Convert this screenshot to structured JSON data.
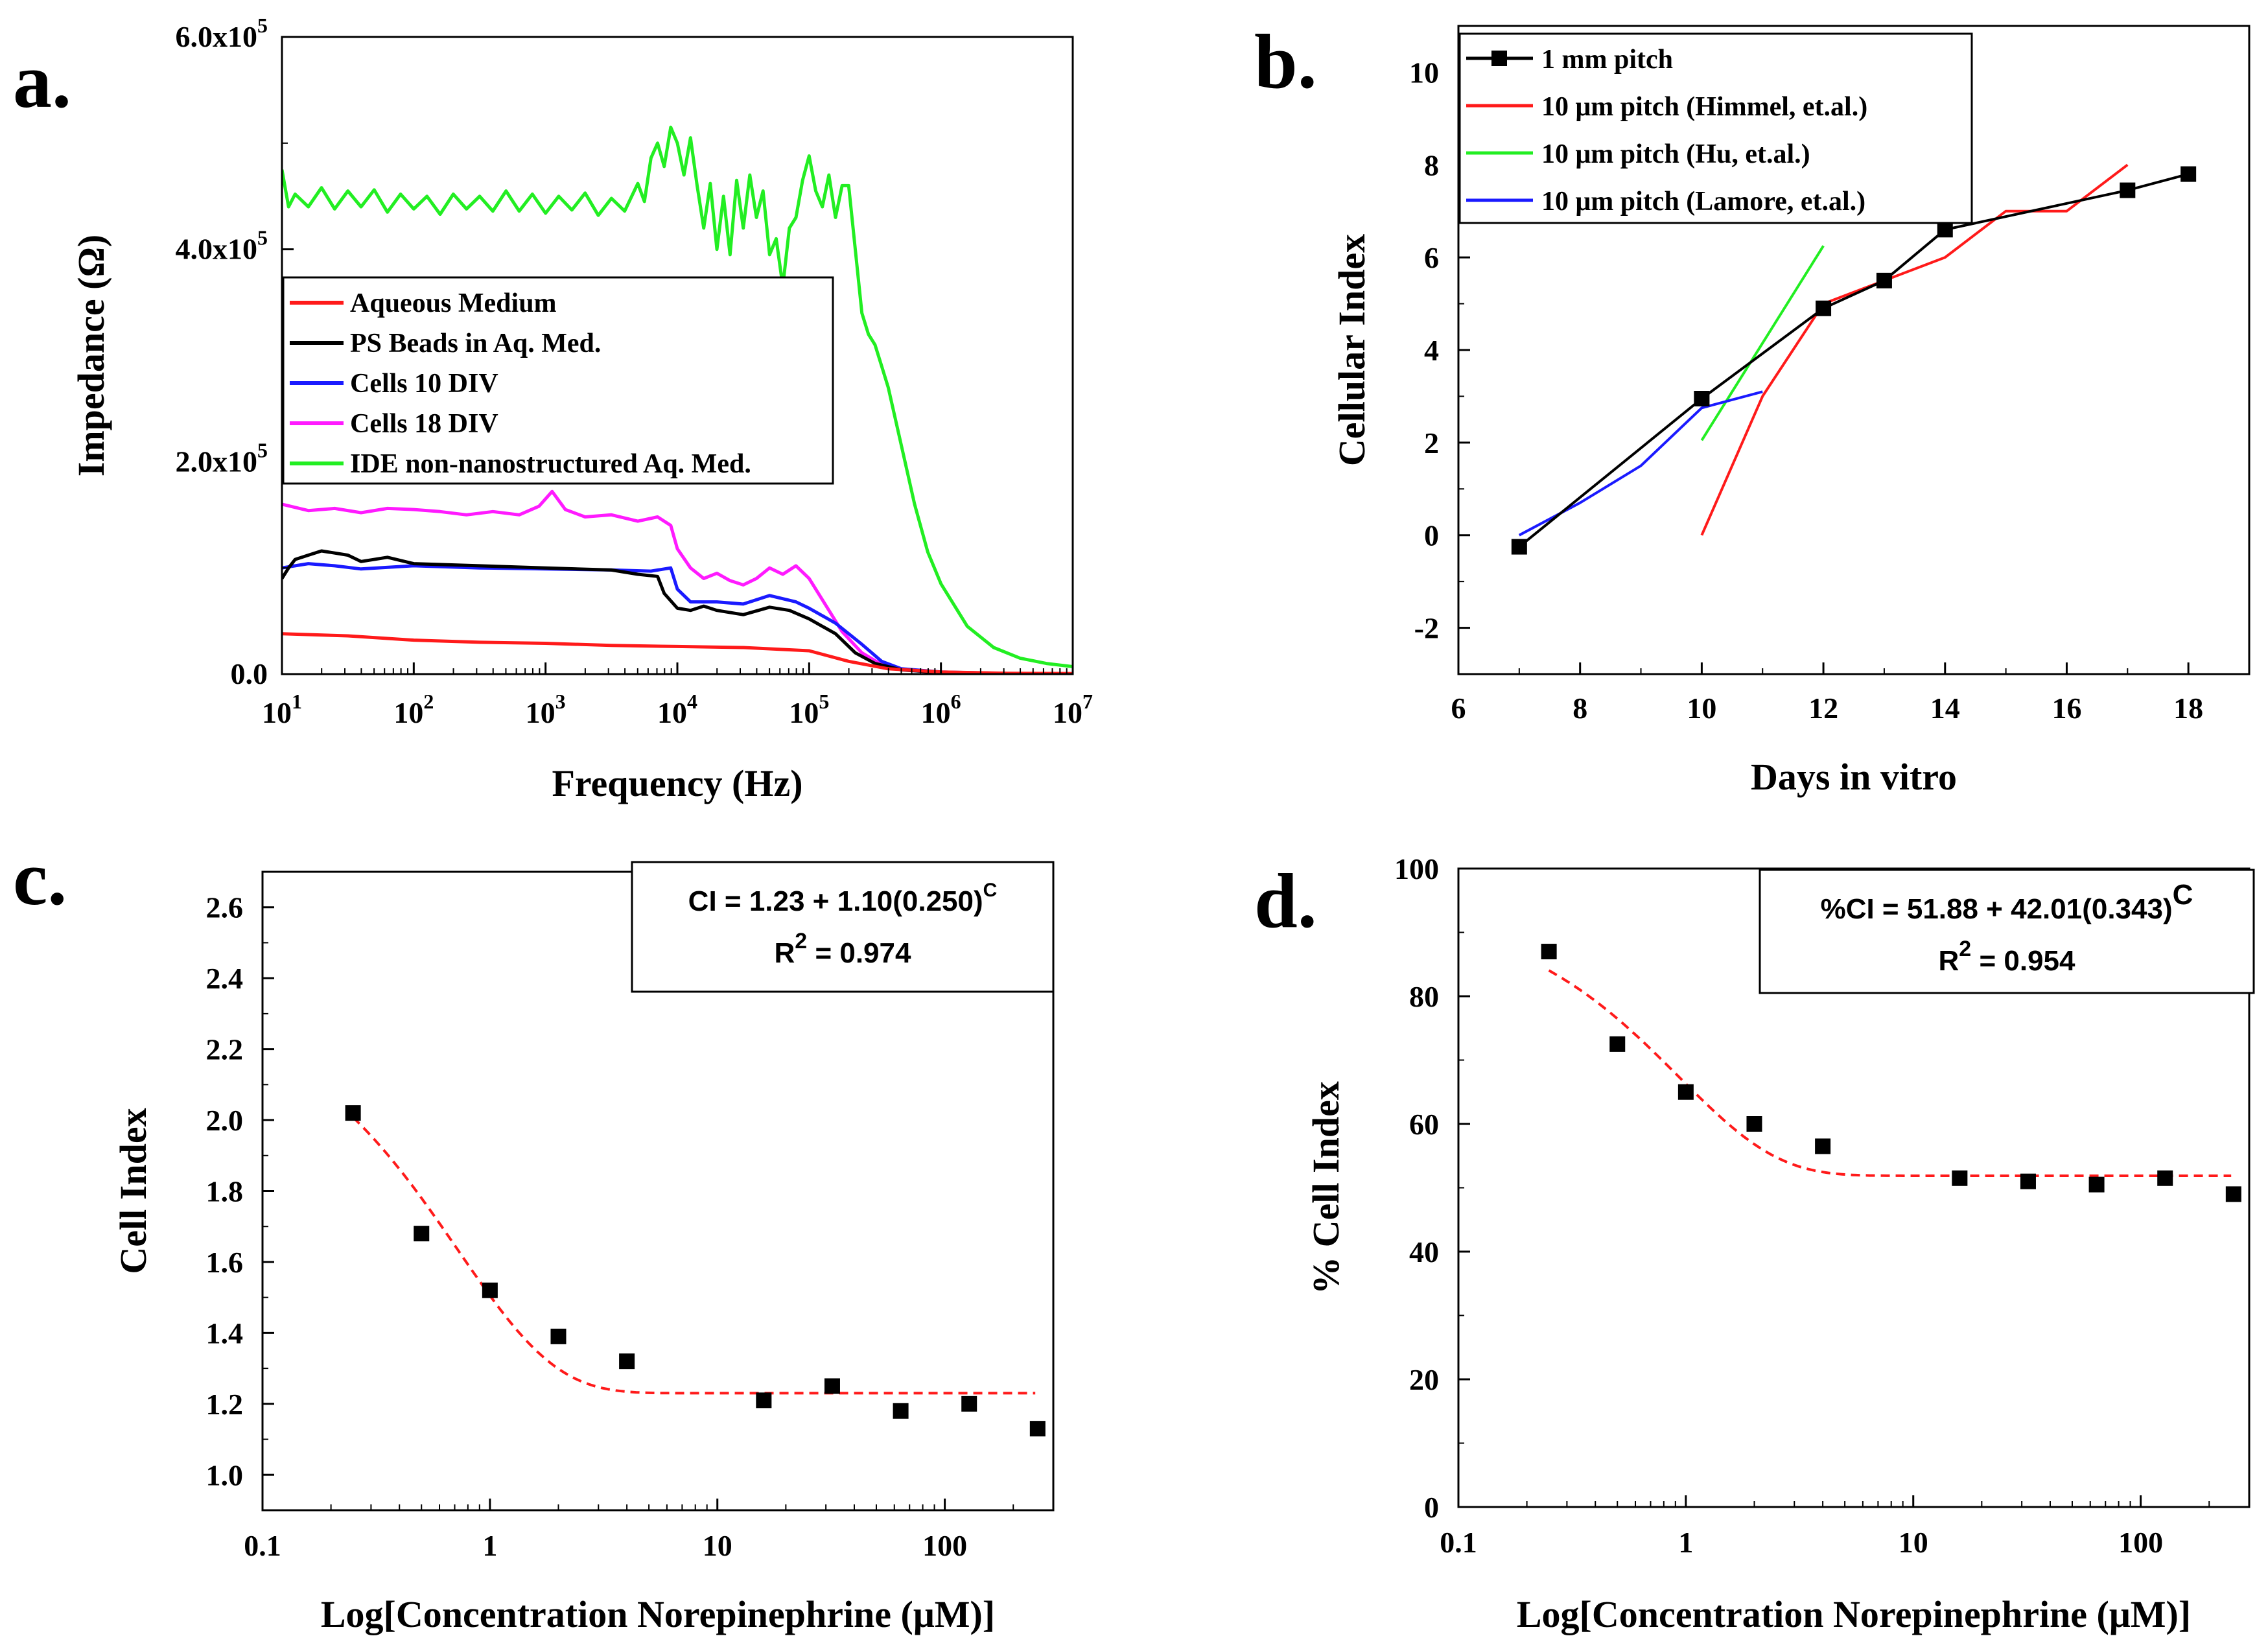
{
  "panels": {
    "a": {
      "label": "a."
    },
    "b": {
      "label": "b."
    },
    "c": {
      "label": "c."
    },
    "d": {
      "label": "d."
    }
  },
  "chart_data": [
    {
      "id": "a",
      "type": "line",
      "xscale": "log",
      "xlim_exp": [
        1,
        7
      ],
      "x_ticks": [
        {
          "base": "10",
          "exp": "1"
        },
        {
          "base": "10",
          "exp": "2"
        },
        {
          "base": "10",
          "exp": "3"
        },
        {
          "base": "10",
          "exp": "4"
        },
        {
          "base": "10",
          "exp": "5"
        },
        {
          "base": "10",
          "exp": "6"
        },
        {
          "base": "10",
          "exp": "7"
        }
      ],
      "ylim": [
        0,
        600000
      ],
      "y_ticks": [
        {
          "value": 0,
          "label": "0.0"
        },
        {
          "value": 200000,
          "mant": "2.0x10",
          "exp": "5"
        },
        {
          "value": 400000,
          "mant": "4.0x10",
          "exp": "5"
        },
        {
          "value": 600000,
          "mant": "6.0x10",
          "exp": "5"
        }
      ],
      "xlabel": "Frequency (Hz)",
      "ylabel": "Impedance (Ω)",
      "legend_position": "center-left",
      "series": [
        {
          "name": "Aqueous Medium",
          "color": "#ff1a1a",
          "points": [
            [
              1.0,
              38000
            ],
            [
              1.5,
              36000
            ],
            [
              2.0,
              32000
            ],
            [
              2.5,
              30000
            ],
            [
              3.0,
              29000
            ],
            [
              3.5,
              27000
            ],
            [
              4.0,
              26000
            ],
            [
              4.5,
              25000
            ],
            [
              5.0,
              22000
            ],
            [
              5.3,
              12000
            ],
            [
              5.6,
              5000
            ],
            [
              6.0,
              2000
            ],
            [
              6.5,
              800
            ],
            [
              7.0,
              500
            ]
          ]
        },
        {
          "name": "PS Beads in Aq. Med.",
          "color": "#000000",
          "points": [
            [
              1.0,
              90000
            ],
            [
              1.05,
              100000
            ],
            [
              1.1,
              108000
            ],
            [
              1.2,
              112000
            ],
            [
              1.3,
              116000
            ],
            [
              1.4,
              114000
            ],
            [
              1.5,
              112000
            ],
            [
              1.6,
              106000
            ],
            [
              1.8,
              110000
            ],
            [
              2.0,
              104000
            ],
            [
              2.5,
              102000
            ],
            [
              3.0,
              100000
            ],
            [
              3.5,
              98000
            ],
            [
              3.7,
              94000
            ],
            [
              3.85,
              92000
            ],
            [
              3.9,
              76000
            ],
            [
              4.0,
              62000
            ],
            [
              4.1,
              60000
            ],
            [
              4.2,
              64000
            ],
            [
              4.3,
              60000
            ],
            [
              4.5,
              56000
            ],
            [
              4.7,
              63000
            ],
            [
              4.85,
              60000
            ],
            [
              5.0,
              52000
            ],
            [
              5.2,
              38000
            ],
            [
              5.35,
              20000
            ],
            [
              5.5,
              10000
            ],
            [
              5.7,
              4000
            ],
            [
              6.0,
              1500
            ],
            [
              6.5,
              500
            ],
            [
              7.0,
              300
            ]
          ]
        },
        {
          "name": "Cells 10 DIV",
          "color": "#1a1aff",
          "points": [
            [
              1.0,
              100000
            ],
            [
              1.2,
              104000
            ],
            [
              1.4,
              102000
            ],
            [
              1.6,
              99000
            ],
            [
              2.0,
              102000
            ],
            [
              2.5,
              100000
            ],
            [
              3.0,
              99000
            ],
            [
              3.5,
              98000
            ],
            [
              3.8,
              97000
            ],
            [
              3.95,
              100000
            ],
            [
              4.0,
              80000
            ],
            [
              4.1,
              68000
            ],
            [
              4.3,
              68000
            ],
            [
              4.5,
              66000
            ],
            [
              4.7,
              74000
            ],
            [
              4.9,
              68000
            ],
            [
              5.0,
              62000
            ],
            [
              5.2,
              48000
            ],
            [
              5.4,
              28000
            ],
            [
              5.55,
              12000
            ],
            [
              5.7,
              5000
            ],
            [
              6.0,
              2000
            ],
            [
              6.5,
              600
            ],
            [
              7.0,
              300
            ]
          ]
        },
        {
          "name": "Cells 18 DIV",
          "color": "#ff1aff",
          "points": [
            [
              1.0,
              160000
            ],
            [
              1.2,
              154000
            ],
            [
              1.4,
              156000
            ],
            [
              1.6,
              152000
            ],
            [
              1.8,
              156000
            ],
            [
              2.0,
              155000
            ],
            [
              2.2,
              153000
            ],
            [
              2.4,
              150000
            ],
            [
              2.6,
              153000
            ],
            [
              2.8,
              150000
            ],
            [
              2.95,
              158000
            ],
            [
              3.05,
              172000
            ],
            [
              3.15,
              155000
            ],
            [
              3.3,
              148000
            ],
            [
              3.5,
              150000
            ],
            [
              3.7,
              144000
            ],
            [
              3.85,
              148000
            ],
            [
              3.95,
              140000
            ],
            [
              4.0,
              118000
            ],
            [
              4.1,
              100000
            ],
            [
              4.2,
              90000
            ],
            [
              4.3,
              95000
            ],
            [
              4.4,
              88000
            ],
            [
              4.5,
              84000
            ],
            [
              4.6,
              90000
            ],
            [
              4.7,
              100000
            ],
            [
              4.8,
              94000
            ],
            [
              4.9,
              102000
            ],
            [
              5.0,
              90000
            ],
            [
              5.1,
              70000
            ],
            [
              5.25,
              40000
            ],
            [
              5.4,
              20000
            ],
            [
              5.55,
              9000
            ],
            [
              5.7,
              4000
            ],
            [
              6.0,
              1500
            ],
            [
              6.5,
              500
            ],
            [
              7.0,
              300
            ]
          ]
        },
        {
          "name": "IDE non-nanostructured Aq. Med.",
          "color": "#22ee22",
          "points": [
            [
              1.0,
              475000
            ],
            [
              1.05,
              440000
            ],
            [
              1.1,
              452000
            ],
            [
              1.2,
              440000
            ],
            [
              1.3,
              458000
            ],
            [
              1.4,
              438000
            ],
            [
              1.5,
              455000
            ],
            [
              1.6,
              440000
            ],
            [
              1.7,
              456000
            ],
            [
              1.8,
              435000
            ],
            [
              1.9,
              452000
            ],
            [
              2.0,
              438000
            ],
            [
              2.1,
              450000
            ],
            [
              2.2,
              433000
            ],
            [
              2.3,
              452000
            ],
            [
              2.4,
              438000
            ],
            [
              2.5,
              450000
            ],
            [
              2.6,
              436000
            ],
            [
              2.7,
              455000
            ],
            [
              2.8,
              436000
            ],
            [
              2.9,
              452000
            ],
            [
              3.0,
              434000
            ],
            [
              3.1,
              450000
            ],
            [
              3.2,
              437000
            ],
            [
              3.3,
              453000
            ],
            [
              3.4,
              432000
            ],
            [
              3.5,
              448000
            ],
            [
              3.6,
              436000
            ],
            [
              3.7,
              462000
            ],
            [
              3.75,
              445000
            ],
            [
              3.8,
              486000
            ],
            [
              3.85,
              500000
            ],
            [
              3.9,
              478000
            ],
            [
              3.95,
              515000
            ],
            [
              4.0,
              500000
            ],
            [
              4.05,
              470000
            ],
            [
              4.1,
              505000
            ],
            [
              4.15,
              460000
            ],
            [
              4.2,
              420000
            ],
            [
              4.25,
              462000
            ],
            [
              4.3,
              400000
            ],
            [
              4.35,
              450000
            ],
            [
              4.4,
              395000
            ],
            [
              4.45,
              465000
            ],
            [
              4.5,
              420000
            ],
            [
              4.55,
              470000
            ],
            [
              4.6,
              430000
            ],
            [
              4.65,
              455000
            ],
            [
              4.7,
              395000
            ],
            [
              4.75,
              410000
            ],
            [
              4.8,
              365000
            ],
            [
              4.85,
              420000
            ],
            [
              4.9,
              430000
            ],
            [
              4.95,
              465000
            ],
            [
              5.0,
              488000
            ],
            [
              5.05,
              455000
            ],
            [
              5.1,
              440000
            ],
            [
              5.15,
              470000
            ],
            [
              5.2,
              430000
            ],
            [
              5.25,
              460000
            ],
            [
              5.3,
              460000
            ],
            [
              5.35,
              400000
            ],
            [
              5.4,
              340000
            ],
            [
              5.45,
              320000
            ],
            [
              5.5,
              310000
            ],
            [
              5.55,
              290000
            ],
            [
              5.6,
              270000
            ],
            [
              5.7,
              215000
            ],
            [
              5.8,
              160000
            ],
            [
              5.9,
              115000
            ],
            [
              6.0,
              85000
            ],
            [
              6.2,
              45000
            ],
            [
              6.4,
              25000
            ],
            [
              6.6,
              15000
            ],
            [
              6.8,
              10000
            ],
            [
              7.0,
              7000
            ]
          ]
        }
      ]
    },
    {
      "id": "b",
      "type": "line",
      "xlim": [
        6,
        19
      ],
      "x_ticks": [
        6,
        8,
        10,
        12,
        14,
        16,
        18
      ],
      "ylim": [
        -3,
        11
      ],
      "y_ticks": [
        -2,
        0,
        2,
        4,
        6,
        8,
        10
      ],
      "xlabel": "Days in vitro",
      "ylabel": "Cellular Index",
      "legend_position": "top-left",
      "series": [
        {
          "name": "1 mm pitch",
          "color": "#000000",
          "marker": "square",
          "x": [
            7,
            10,
            12,
            13,
            14,
            17,
            18
          ],
          "y": [
            -0.25,
            2.95,
            4.9,
            5.5,
            6.6,
            7.45,
            7.8
          ]
        },
        {
          "name": "10 μm pitch (Himmel, et.al.)",
          "color": "#ff1a1a",
          "x": [
            10,
            11,
            12,
            13,
            14,
            15,
            16,
            17
          ],
          "y": [
            0,
            3,
            5,
            5.5,
            6,
            7,
            7,
            8
          ]
        },
        {
          "name": "10 μm pitch (Hu, et.al.)",
          "color": "#22ee22",
          "x": [
            10,
            12
          ],
          "y": [
            2.05,
            6.25
          ]
        },
        {
          "name": "10 μm pitch (Lamore, et.al.)",
          "color": "#1a1aff",
          "x": [
            7,
            8,
            9,
            10,
            11
          ],
          "y": [
            0,
            0.7,
            1.5,
            2.75,
            3.1
          ]
        }
      ]
    },
    {
      "id": "c",
      "type": "scatter",
      "xscale": "log",
      "xlim": [
        0.1,
        300
      ],
      "x_ticks": [
        {
          "value": 0.1,
          "label": "0.1"
        },
        {
          "value": 1,
          "label": "1"
        },
        {
          "value": 10,
          "label": "10"
        },
        {
          "value": 100,
          "label": "100"
        }
      ],
      "ylim": [
        0.9,
        2.7
      ],
      "y_ticks": [
        1.0,
        1.2,
        1.4,
        1.6,
        1.8,
        2.0,
        2.2,
        2.4,
        2.6
      ],
      "xlabel": "Log[Concentration Norepinephrine (μM)]",
      "ylabel": "Cell Index",
      "equation": "CI = 1.23 + 1.10(0.250)",
      "equation_sup": "C",
      "r2_label": "R",
      "r2_sup": "2",
      "r2_value": " = 0.974",
      "fit": {
        "a": 1.23,
        "b": 1.1,
        "c": 0.25,
        "x_from": 0.25,
        "x_to": 250,
        "color": "#ff1a1a"
      },
      "points": {
        "x": [
          0.25,
          0.5,
          1,
          2,
          4,
          16,
          32,
          64,
          128,
          256
        ],
        "y": [
          2.02,
          1.68,
          1.52,
          1.39,
          1.32,
          1.21,
          1.25,
          1.18,
          1.2,
          1.13
        ]
      }
    },
    {
      "id": "d",
      "type": "scatter",
      "xscale": "log",
      "xlim": [
        0.1,
        300
      ],
      "x_ticks": [
        {
          "value": 0.1,
          "label": "0.1"
        },
        {
          "value": 1,
          "label": "1"
        },
        {
          "value": 10,
          "label": "10"
        },
        {
          "value": 100,
          "label": "100"
        }
      ],
      "ylim": [
        0,
        100
      ],
      "y_ticks": [
        0,
        20,
        40,
        60,
        80,
        100
      ],
      "xlabel": "Log[Concentration Norepinephrine (μM)]",
      "ylabel": "% Cell Index",
      "equation": "%CI = 51.88 + 42.01(0.343)",
      "equation_sup": "C",
      "r2_label": "R",
      "r2_sup": "2",
      "r2_value": " = 0.954",
      "fit": {
        "a": 51.88,
        "b": 42.01,
        "c": 0.343,
        "x_from": 0.25,
        "x_to": 250,
        "color": "#ff1a1a"
      },
      "points": {
        "x": [
          0.25,
          0.5,
          1,
          2,
          4,
          16,
          32,
          64,
          128,
          256
        ],
        "y": [
          87,
          72.5,
          65,
          60,
          56.5,
          51.5,
          51,
          50.5,
          51.5,
          49
        ]
      }
    }
  ]
}
